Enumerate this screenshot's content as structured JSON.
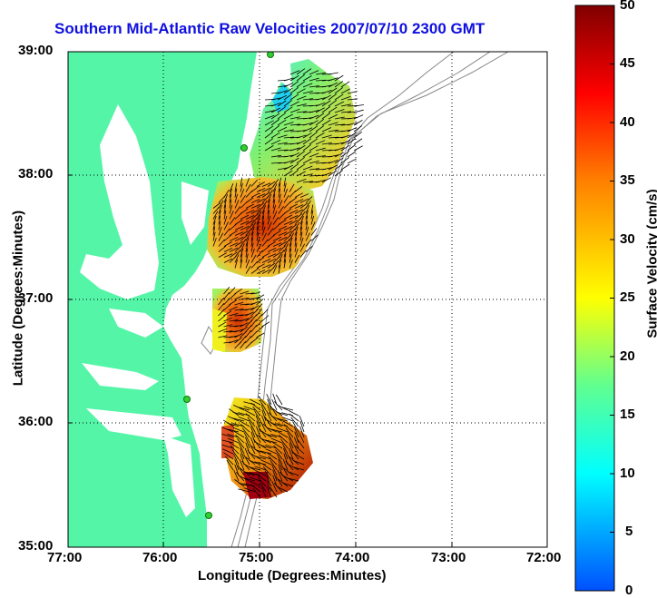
{
  "title": "Southern Mid-Atlantic Raw Velocities 2007/07/10 2300 GMT",
  "map": {
    "lon_range": [
      -77,
      -72
    ],
    "lat_range": [
      35,
      39
    ],
    "x_ticks": [
      "77:00",
      "76:00",
      "75:00",
      "74:00",
      "73:00",
      "72:00"
    ],
    "y_ticks": [
      "39:00",
      "38:00",
      "37:00",
      "36:00",
      "35:00"
    ],
    "xlabel": "Longitude (Degrees:Minutes)",
    "ylabel": "Latitude (Degrees:Minutes)",
    "grid": "dotted",
    "land_color": "#55f5a8",
    "bathymetry_color": "#888888"
  },
  "colorbar": {
    "label": "Surface Velocity (cm/s)",
    "ticks": [
      "50",
      "45",
      "40",
      "35",
      "30",
      "25",
      "20",
      "15",
      "10",
      "5",
      "0"
    ],
    "min": 0,
    "max": 50,
    "colors": [
      "#0050ff",
      "#00ffff",
      "#60ff90",
      "#ffff00",
      "#ff8000",
      "#ff0000",
      "#800000"
    ]
  }
}
